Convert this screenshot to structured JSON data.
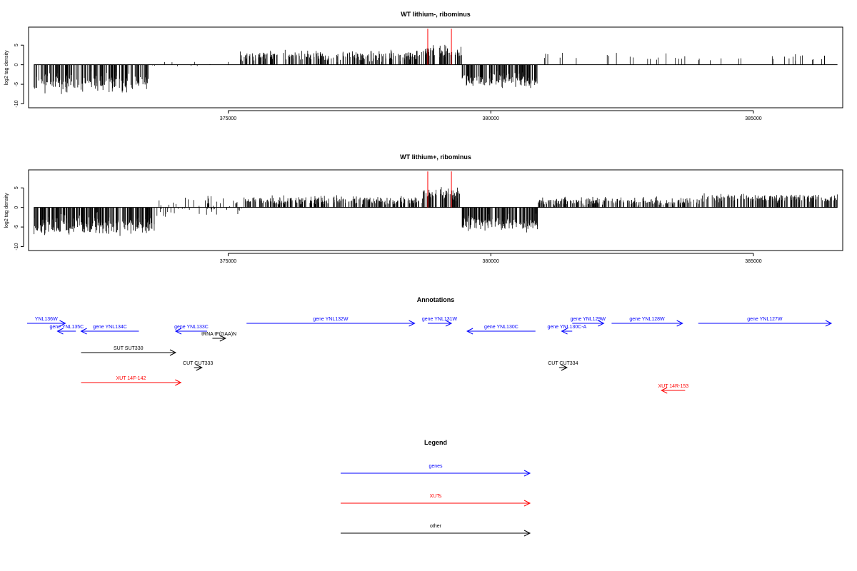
{
  "colors": {
    "gene": "#0000ff",
    "xut": "#ff0000",
    "other": "#000000",
    "marker": "#ff0000"
  },
  "chart_data": [
    {
      "type": "bar",
      "title": "WT lithium-, ribominus",
      "ylabel": "log2 tag density",
      "xlim": [
        371200,
        386700
      ],
      "ylim": [
        -11,
        9.6
      ],
      "yticks": [
        -10,
        -5,
        0,
        5
      ],
      "xticks": [
        375000,
        380000,
        385000
      ],
      "marker_x": [
        378800,
        379250
      ],
      "marker_value": 9.2,
      "regions": [
        {
          "from": 371300,
          "to": 373500,
          "mean": -4.6,
          "spread": 2.4,
          "density": 180
        },
        {
          "from": 373500,
          "to": 375200,
          "mean": 0.3,
          "spread": 2.0,
          "density": 12
        },
        {
          "from": 375200,
          "to": 378700,
          "mean": 2.3,
          "spread": 1.3,
          "density": 240
        },
        {
          "from": 378700,
          "to": 379450,
          "mean": 3.2,
          "spread": 1.6,
          "density": 60
        },
        {
          "from": 379450,
          "to": 380900,
          "mean": -4.0,
          "spread": 1.8,
          "density": 150
        },
        {
          "from": 380900,
          "to": 386600,
          "mean": 1.8,
          "spread": 1.1,
          "density": 40
        }
      ]
    },
    {
      "type": "bar",
      "title": "WT lithium+, ribominus",
      "ylabel": "log2 tag density",
      "xlim": [
        371200,
        386700
      ],
      "ylim": [
        -11,
        9.6
      ],
      "yticks": [
        -10,
        -5,
        0,
        5
      ],
      "xticks": [
        375000,
        380000,
        385000
      ],
      "marker_x": [
        378800,
        379250
      ],
      "marker_value": 9.2,
      "regions": [
        {
          "from": 371300,
          "to": 373600,
          "mean": -4.6,
          "spread": 2.6,
          "density": 260
        },
        {
          "from": 373600,
          "to": 375300,
          "mean": 0.2,
          "spread": 2.4,
          "density": 60
        },
        {
          "from": 375300,
          "to": 378700,
          "mean": 1.8,
          "spread": 1.2,
          "density": 250
        },
        {
          "from": 378700,
          "to": 379450,
          "mean": 3.4,
          "spread": 1.5,
          "density": 70
        },
        {
          "from": 379450,
          "to": 380900,
          "mean": -3.9,
          "spread": 1.9,
          "density": 170
        },
        {
          "from": 380900,
          "to": 384000,
          "mean": 1.6,
          "spread": 1.0,
          "density": 220
        },
        {
          "from": 384000,
          "to": 386600,
          "mean": 2.4,
          "spread": 1.0,
          "density": 200
        }
      ]
    }
  ],
  "annotations": {
    "title": "Annotations",
    "genes": [
      {
        "label": "YNL136W",
        "from": 371150,
        "to": 371900,
        "strand": "+"
      },
      {
        "label": "gene YNL135C",
        "from": 371750,
        "to": 372100,
        "strand": "-"
      },
      {
        "label": "gene YNL134C",
        "from": 372200,
        "to": 373300,
        "strand": "-"
      },
      {
        "label": "gene YNL133C",
        "from": 374000,
        "to": 374600,
        "strand": "-"
      },
      {
        "label": "gene YNL132W",
        "from": 375350,
        "to": 378550,
        "strand": "+"
      },
      {
        "label": "gene YNL131W",
        "from": 378800,
        "to": 379250,
        "strand": "+"
      },
      {
        "label": "gene YNL130C",
        "from": 379550,
        "to": 380850,
        "strand": "-"
      },
      {
        "label": "gene YNL130C-A",
        "from": 381350,
        "to": 381550,
        "strand": "-"
      },
      {
        "label": "gene YNL129W",
        "from": 381550,
        "to": 382150,
        "strand": "+"
      },
      {
        "label": "gene YNL128W",
        "from": 382300,
        "to": 383650,
        "strand": "+"
      },
      {
        "label": "gene YNL127W",
        "from": 383950,
        "to": 386950,
        "strand": "+"
      }
    ],
    "xuts": [
      {
        "label": "XUT 14F-142",
        "from": 372200,
        "to": 374100,
        "strand": "+"
      },
      {
        "label": "XUT 14R-153",
        "from": 383250,
        "to": 383700,
        "strand": "-"
      }
    ],
    "other": [
      {
        "label": "SUT SUT330",
        "from": 372200,
        "to": 374000,
        "strand": "+"
      },
      {
        "label": "tRNA tF(GAA)N",
        "from": 374700,
        "to": 374950,
        "strand": "+"
      },
      {
        "label": "CUT CUT333",
        "from": 374350,
        "to": 374500,
        "strand": "+"
      },
      {
        "label": "CUT CUT334",
        "from": 381300,
        "to": 381450,
        "strand": "+"
      }
    ]
  },
  "legend": {
    "title": "Legend",
    "items": [
      {
        "label": "genes",
        "kind": "gene"
      },
      {
        "label": "XUTs",
        "kind": "xut"
      },
      {
        "label": "other",
        "kind": "other"
      }
    ]
  }
}
